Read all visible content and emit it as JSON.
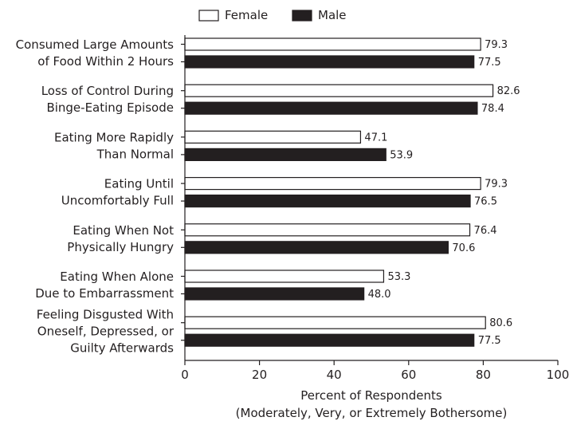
{
  "chart_data": {
    "type": "bar",
    "orientation": "horizontal",
    "categories": [
      [
        "Consumed Large Amounts",
        "of Food Within 2 Hours"
      ],
      [
        "Loss of Control During",
        "Binge-Eating Episode"
      ],
      [
        "Eating More Rapidly",
        "Than Normal"
      ],
      [
        "Eating Until",
        "Uncomfortably Full"
      ],
      [
        "Eating When Not",
        "Physically Hungry"
      ],
      [
        "Eating When Alone",
        "Due to Embarrassment"
      ],
      [
        "Feeling Disgusted With",
        "Oneself, Depressed, or",
        "Guilty Afterwards"
      ]
    ],
    "series": [
      {
        "name": "Female",
        "color": "#ffffff",
        "values": [
          79.3,
          82.6,
          47.1,
          79.3,
          76.4,
          53.3,
          80.6
        ]
      },
      {
        "name": "Male",
        "color": "#231f20",
        "values": [
          77.5,
          78.4,
          53.9,
          76.5,
          70.6,
          48.0,
          77.5
        ]
      }
    ],
    "value_labels": {
      "Female": [
        "79.3",
        "82.6",
        "47.1",
        "79.3",
        "76.4",
        "53.3",
        "80.6"
      ],
      "Male": [
        "77.5",
        "78.4",
        "53.9",
        "76.5",
        "70.6",
        "48.0",
        "77.5"
      ]
    },
    "xlim": [
      0,
      100
    ],
    "xticks": [
      0,
      20,
      40,
      60,
      80,
      100
    ],
    "xlabel": [
      "Percent of Respondents",
      "(Moderately, Very, or Extremely Bothersome)"
    ],
    "legend_position": "top",
    "grid": false
  }
}
